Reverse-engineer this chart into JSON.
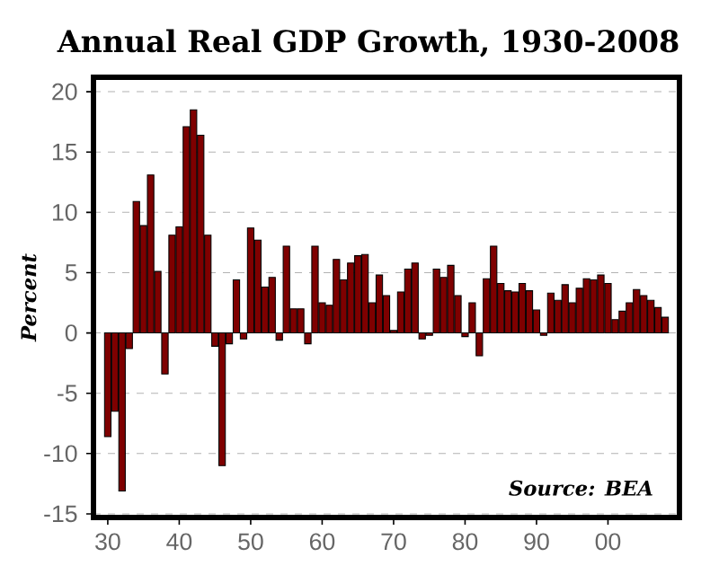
{
  "chart_data": {
    "type": "bar",
    "title": "Annual Real GDP Growth, 1930-2008",
    "ylabel": "Percent",
    "annotations": [
      "Source: BEA"
    ],
    "x": [
      1930,
      1931,
      1932,
      1933,
      1934,
      1935,
      1936,
      1937,
      1938,
      1939,
      1940,
      1941,
      1942,
      1943,
      1944,
      1945,
      1946,
      1947,
      1948,
      1949,
      1950,
      1951,
      1952,
      1953,
      1954,
      1955,
      1956,
      1957,
      1958,
      1959,
      1960,
      1961,
      1962,
      1963,
      1964,
      1965,
      1966,
      1967,
      1968,
      1969,
      1970,
      1971,
      1972,
      1973,
      1974,
      1975,
      1976,
      1977,
      1978,
      1979,
      1980,
      1981,
      1982,
      1983,
      1984,
      1985,
      1986,
      1987,
      1988,
      1989,
      1990,
      1991,
      1992,
      1993,
      1994,
      1995,
      1996,
      1997,
      1998,
      1999,
      2000,
      2001,
      2002,
      2003,
      2004,
      2005,
      2006,
      2007,
      2008
    ],
    "values": [
      -8.6,
      -6.5,
      -13.1,
      -1.3,
      10.9,
      8.9,
      13.1,
      5.1,
      -3.4,
      8.1,
      8.8,
      17.1,
      18.5,
      16.4,
      8.1,
      -1.1,
      -11.0,
      -0.9,
      4.4,
      -0.5,
      8.7,
      7.7,
      3.8,
      4.6,
      -0.6,
      7.2,
      2.0,
      2.0,
      -0.9,
      7.2,
      2.5,
      2.3,
      6.1,
      4.4,
      5.8,
      6.4,
      6.5,
      2.5,
      4.8,
      3.1,
      0.2,
      3.4,
      5.3,
      5.8,
      -0.5,
      -0.2,
      5.3,
      4.6,
      5.6,
      3.1,
      -0.3,
      2.5,
      -1.9,
      4.5,
      7.2,
      4.1,
      3.5,
      3.4,
      4.1,
      3.5,
      1.9,
      -0.2,
      3.3,
      2.7,
      4.0,
      2.5,
      3.7,
      4.5,
      4.4,
      4.8,
      4.1,
      1.1,
      1.8,
      2.5,
      3.6,
      3.1,
      2.7,
      2.1,
      1.3
    ],
    "color": "#7f0000",
    "xlim": [
      1928,
      2010
    ],
    "ylim": [
      -15.3,
      21.2
    ],
    "xticks": [
      {
        "value": 1930,
        "label": "30"
      },
      {
        "value": 1940,
        "label": "40"
      },
      {
        "value": 1950,
        "label": "50"
      },
      {
        "value": 1960,
        "label": "60"
      },
      {
        "value": 1970,
        "label": "70"
      },
      {
        "value": 1980,
        "label": "80"
      },
      {
        "value": 1990,
        "label": "90"
      },
      {
        "value": 2000,
        "label": "00"
      }
    ],
    "yticks": [
      -15,
      -10,
      -5,
      0,
      5,
      10,
      15,
      20
    ],
    "grid": "y"
  }
}
